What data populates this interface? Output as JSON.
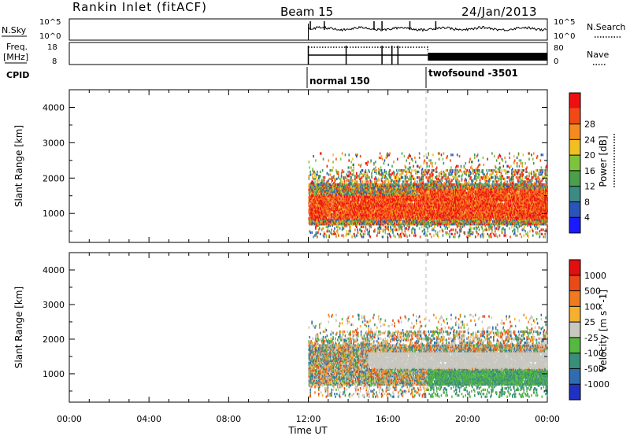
{
  "header": {
    "title": "Rankin Inlet (fitACF)",
    "beam": "Beam 15",
    "date": "24/Jan/2013"
  },
  "aux_panels": {
    "nsky_label": "N.Sky",
    "nsky_ticks": [
      "10^5",
      "10^0"
    ],
    "nsearch_label": "N.Search",
    "freq_label": "Freq.",
    "freq_unit": "[MHz]",
    "freq_ticks": [
      "18",
      "8"
    ],
    "nave_label": "Nave",
    "nave_ticks": [
      "80",
      "0"
    ],
    "cpid_label": "CPID",
    "modes": [
      {
        "name": "normal 150",
        "start_hour": 12.0
      },
      {
        "name": "twofsound -3501",
        "start_hour": 18.0
      }
    ]
  },
  "chart_data": [
    {
      "type": "heatmap",
      "name": "power-panel",
      "ylabel": "Slant Range [km]",
      "ylim": [
        180,
        4500
      ],
      "yticks": [
        1000,
        2000,
        3000,
        4000
      ],
      "xlim": [
        0,
        24
      ],
      "colorbar": {
        "label": "Power [dB]",
        "ticks": [
          "4",
          "8",
          "12",
          "16",
          "20",
          "24",
          "28"
        ],
        "colors": [
          "#1a1aff",
          "#2a55b8",
          "#3b8a84",
          "#4aa04a",
          "#7dc43c",
          "#f0c020",
          "#f58a1e",
          "#f04a14",
          "#ee1010"
        ]
      },
      "echo_region": {
        "start_hour": 12.0,
        "end_hour": 24.0,
        "main_band_km": [
          650,
          1800
        ],
        "dominant": "red-orange"
      }
    },
    {
      "type": "heatmap",
      "name": "velocity-panel",
      "ylabel": "Slant Range [km]",
      "ylim": [
        180,
        4500
      ],
      "yticks": [
        1000,
        2000,
        3000,
        4000
      ],
      "xlim": [
        0,
        24
      ],
      "xticks": [
        "00:00",
        "04:00",
        "08:00",
        "12:00",
        "16:00",
        "20:00",
        "00:00"
      ],
      "xlabel": "Time UT",
      "colorbar": {
        "label": "Velocity [m s^-1]",
        "ticks": [
          "1000",
          "500",
          "100",
          "25",
          "-25",
          "-100",
          "-500",
          "-1000"
        ],
        "colors": [
          "#2030c0",
          "#2f6db0",
          "#3a8f7a",
          "#55b840",
          "#c8c8c0",
          "#f5b030",
          "#f07a20",
          "#e84a18",
          "#e01010"
        ]
      },
      "echo_region": {
        "start_hour": 12.0,
        "end_hour": 24.0,
        "main_band_km": [
          650,
          1800
        ],
        "dominant": "grey-green-orange"
      }
    }
  ]
}
